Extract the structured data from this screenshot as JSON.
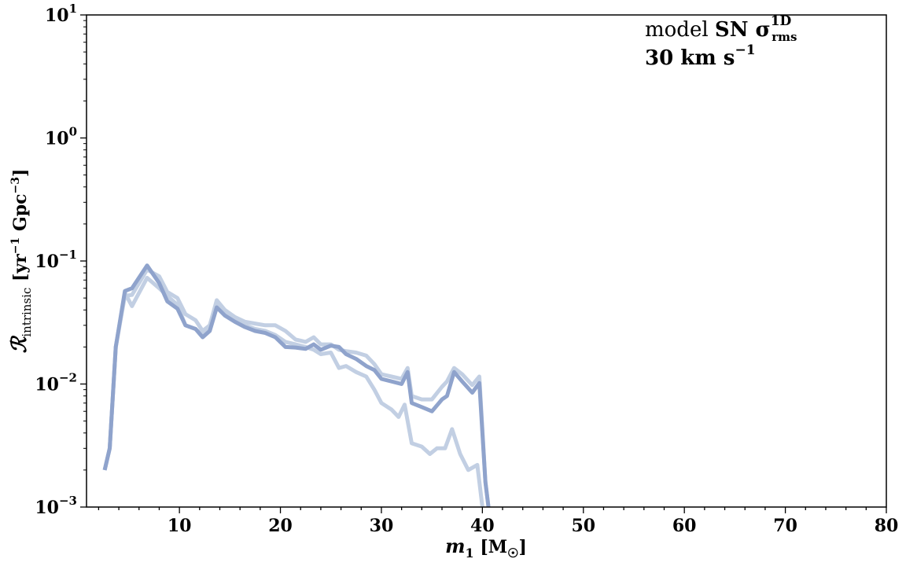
{
  "chart_data": {
    "type": "line",
    "xlabel": "m₁ [M☉]",
    "ylabel": "ℛintrinsic [yr⁻¹ Gpc⁻³]",
    "xlim": [
      0.8,
      80
    ],
    "ylim": [
      0.001,
      10
    ],
    "yscale": "log",
    "grid": false,
    "x_ticks": [
      10,
      20,
      30,
      40,
      50,
      60,
      70,
      80
    ],
    "x_tick_labels": [
      "10",
      "20",
      "30",
      "40",
      "50",
      "60",
      "70",
      "80"
    ],
    "y_ticks": [
      0.001,
      0.01,
      0.1,
      1,
      10
    ],
    "y_tick_labels": [
      {
        "base": "10",
        "exp": "−3"
      },
      {
        "base": "10",
        "exp": "−2"
      },
      {
        "base": "10",
        "exp": "−1"
      },
      {
        "base": "10",
        "exp": "0"
      },
      {
        "base": "10",
        "exp": "1"
      }
    ],
    "annotation": {
      "line1_prefix": "model ",
      "line1_bold": "SN σ",
      "line1_sup": "1D",
      "line1_sub": "rms",
      "line2": "30 km s",
      "line2_sup": "−1"
    },
    "series": [
      {
        "color": "#8fa3cc",
        "opacity": 1.0,
        "x": [
          2.6,
          3.1,
          3.7,
          4.6,
          5.3,
          6.8,
          8.0,
          8.8,
          9.8,
          10.6,
          11.6,
          12.3,
          13.0,
          13.7,
          14.5,
          15.5,
          16.5,
          17.5,
          18.5,
          19.5,
          20.5,
          21.5,
          22.5,
          23.3,
          24.0,
          25.0,
          25.8,
          26.5,
          27.5,
          28.5,
          29.3,
          30.0,
          31.0,
          32.0,
          32.6,
          33.0,
          34.0,
          35.0,
          36.0,
          36.5,
          37.2,
          38.0,
          39.0,
          39.7,
          40.3,
          40.6
        ],
        "y": [
          0.002,
          0.003,
          0.02,
          0.057,
          0.06,
          0.092,
          0.066,
          0.047,
          0.041,
          0.03,
          0.028,
          0.024,
          0.027,
          0.042,
          0.036,
          0.032,
          0.029,
          0.027,
          0.026,
          0.024,
          0.02,
          0.0198,
          0.0193,
          0.021,
          0.019,
          0.0205,
          0.02,
          0.0175,
          0.016,
          0.014,
          0.013,
          0.011,
          0.0105,
          0.01,
          0.0125,
          0.007,
          0.0065,
          0.006,
          0.0075,
          0.008,
          0.0125,
          0.0105,
          0.0085,
          0.0102,
          0.0016,
          0.001
        ]
      },
      {
        "color": "#c2cfe3",
        "opacity": 1.0,
        "x": [
          2.6,
          3.1,
          3.7,
          4.6,
          5.3,
          6.8,
          8.0,
          8.8,
          9.8,
          10.6,
          11.6,
          12.3,
          13.0,
          13.7,
          14.5,
          15.5,
          16.5,
          17.5,
          18.5,
          19.5,
          20.5,
          21.5,
          22.5,
          23.3,
          24.0,
          25.0,
          25.8,
          26.5,
          27.5,
          28.5,
          29.3,
          30.0,
          31.0,
          32.0,
          32.6,
          33.0,
          34.0,
          35.0,
          36.0,
          36.5,
          37.2,
          38.0,
          39.0,
          39.7,
          40.3,
          40.6
        ],
        "y": [
          0.002,
          0.003,
          0.02,
          0.052,
          0.053,
          0.085,
          0.075,
          0.056,
          0.05,
          0.037,
          0.033,
          0.027,
          0.03,
          0.048,
          0.04,
          0.035,
          0.032,
          0.031,
          0.03,
          0.03,
          0.027,
          0.023,
          0.022,
          0.024,
          0.021,
          0.021,
          0.019,
          0.0185,
          0.018,
          0.017,
          0.0145,
          0.012,
          0.0115,
          0.011,
          0.0135,
          0.008,
          0.0075,
          0.0075,
          0.0095,
          0.0105,
          0.0135,
          0.012,
          0.0098,
          0.0115,
          0.0016,
          0.001
        ]
      },
      {
        "color": "#c2cfe3",
        "opacity": 1.0,
        "x": [
          2.6,
          3.1,
          3.7,
          4.6,
          5.3,
          6.8,
          8.0,
          8.8,
          9.8,
          10.6,
          11.6,
          12.3,
          13.0,
          13.7,
          14.5,
          15.5,
          16.5,
          17.5,
          18.5,
          19.5,
          20.5,
          21.5,
          22.5,
          23.3,
          24.0,
          25.0,
          25.8,
          26.5,
          27.5,
          28.5,
          29.3,
          30.0,
          31.0,
          31.7,
          32.3,
          33.0,
          34.0,
          34.8,
          35.5,
          36.3,
          37.0,
          37.8,
          38.6,
          39.5,
          40.0
        ],
        "y": [
          0.002,
          0.003,
          0.02,
          0.055,
          0.043,
          0.073,
          0.06,
          0.052,
          0.044,
          0.03,
          0.028,
          0.025,
          0.029,
          0.045,
          0.038,
          0.034,
          0.03,
          0.028,
          0.027,
          0.025,
          0.022,
          0.021,
          0.02,
          0.019,
          0.0175,
          0.018,
          0.0135,
          0.014,
          0.0125,
          0.0115,
          0.009,
          0.007,
          0.0062,
          0.0054,
          0.0068,
          0.0033,
          0.0031,
          0.0027,
          0.003,
          0.003,
          0.0043,
          0.0027,
          0.002,
          0.0022,
          0.001
        ]
      }
    ]
  }
}
